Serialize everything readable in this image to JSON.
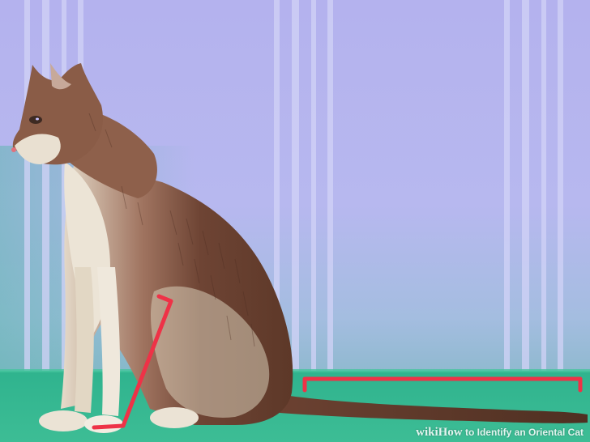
{
  "illustration": {
    "watermark": {
      "brand_wiki": "wiki",
      "brand_how": "How",
      "caption": "to Identify an Oriental Cat"
    },
    "colors": {
      "wall": "#b6b5ee",
      "wall_stripe": "#ccccf6",
      "wall_lower": "#9fb9e0",
      "floor": "#2db58d",
      "floor_light": "#48c49e",
      "cat_dark": "#6b4131",
      "cat_mid": "#8a5c47",
      "cat_light": "#e8dfcf",
      "cat_shadow": "#c9bdaa",
      "marker": "#ee3247"
    },
    "icons": [
      "cat-illustration",
      "leg-length-bracket-icon",
      "tail-length-bracket-icon"
    ]
  }
}
